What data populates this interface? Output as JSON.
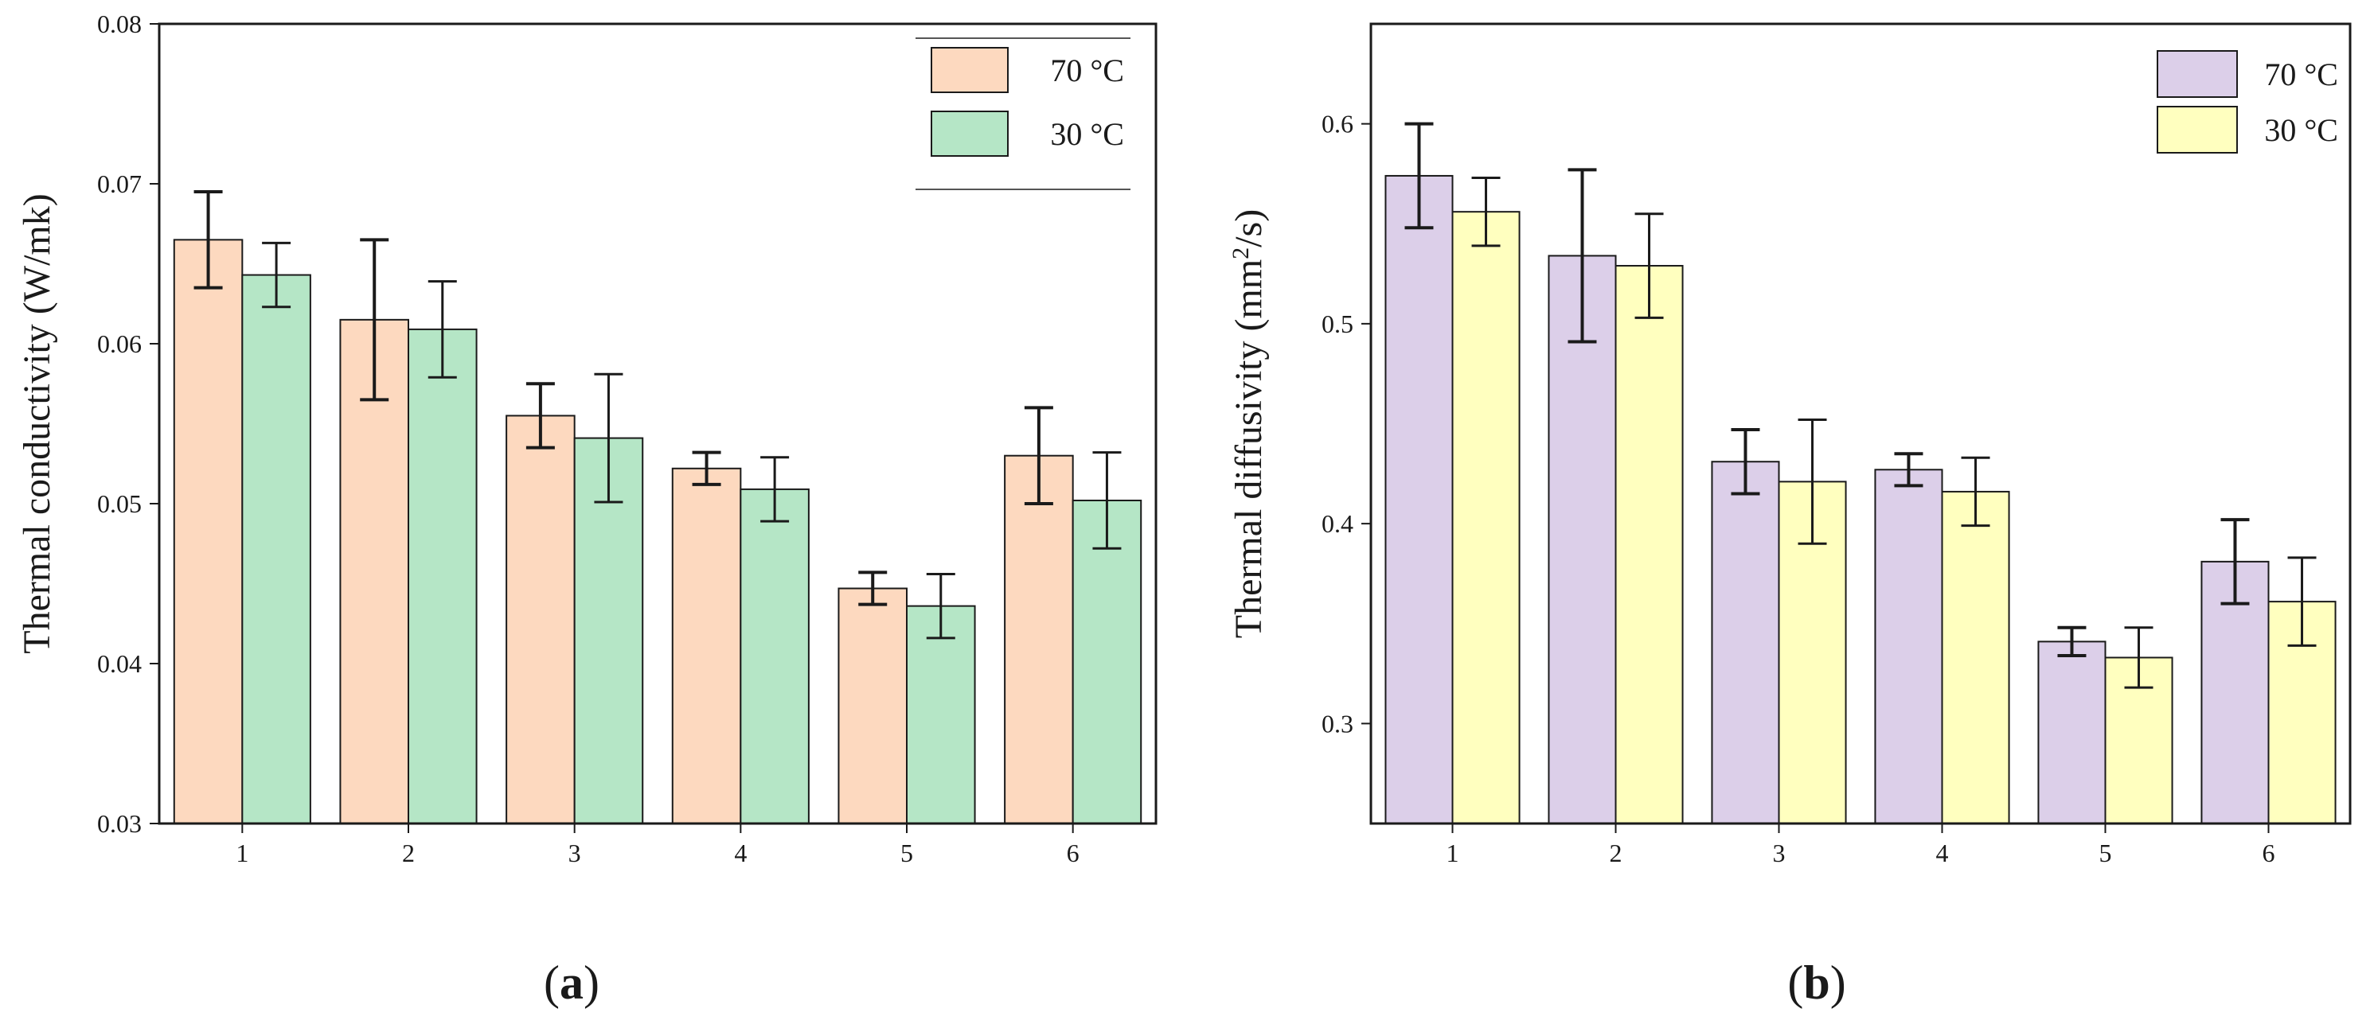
{
  "chart_data": [
    {
      "type": "bar",
      "panel_label": "a",
      "title": "",
      "xlabel": "",
      "ylabel": "Thermal conductivity (W/mk)",
      "ylim": [
        0.03,
        0.08
      ],
      "yticks": [
        0.03,
        0.04,
        0.05,
        0.06,
        0.07,
        0.08
      ],
      "ytick_labels": [
        "0.03",
        "0.04",
        "0.05",
        "0.06",
        "0.07",
        "0.08"
      ],
      "categories": [
        "1",
        "2",
        "3",
        "4",
        "5",
        "6"
      ],
      "grid": false,
      "legend_position": "top-right",
      "series": [
        {
          "name": "70 °C",
          "color": "#fdd9bf",
          "values": [
            0.0665,
            0.0615,
            0.0555,
            0.0522,
            0.0447,
            0.053
          ],
          "errors": [
            0.003,
            0.005,
            0.002,
            0.001,
            0.001,
            0.003
          ]
        },
        {
          "name": "30 °C",
          "color": "#b5e6c6",
          "values": [
            0.0643,
            0.0609,
            0.0541,
            0.0509,
            0.0436,
            0.0502
          ],
          "errors": [
            0.002,
            0.003,
            0.004,
            0.002,
            0.002,
            0.003
          ]
        }
      ]
    },
    {
      "type": "bar",
      "panel_label": "b",
      "title": "",
      "xlabel": "",
      "ylabel_main": "Thermal diffusivity (mm",
      "ylabel_sup": "2",
      "ylabel_end": "/s)",
      "ylim": [
        0.25,
        0.65
      ],
      "yticks": [
        0.3,
        0.4,
        0.5,
        0.6
      ],
      "ytick_labels": [
        "0.3",
        "0.4",
        "0.5",
        "0.6"
      ],
      "categories": [
        "1",
        "2",
        "3",
        "4",
        "5",
        "6"
      ],
      "grid": false,
      "legend_position": "top-right",
      "series": [
        {
          "name": "70 °C",
          "color": "#dccfe9",
          "values": [
            0.574,
            0.534,
            0.431,
            0.427,
            0.341,
            0.381
          ],
          "errors": [
            0.026,
            0.043,
            0.016,
            0.008,
            0.007,
            0.021
          ]
        },
        {
          "name": "30 °C",
          "color": "#ffffbf",
          "values": [
            0.556,
            0.529,
            0.421,
            0.416,
            0.333,
            0.361
          ],
          "errors": [
            0.017,
            0.026,
            0.031,
            0.017,
            0.015,
            0.022
          ]
        }
      ]
    }
  ]
}
